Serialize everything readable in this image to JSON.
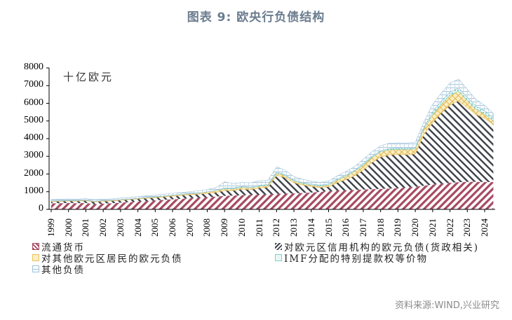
{
  "title": "图表 9:  欧央行负债结构",
  "source": "资料来源:WIND,兴业研究",
  "chart_data": {
    "type": "area",
    "stacked": true,
    "title": "图表 9: 欧央行负债结构",
    "unit_label": "十亿欧元",
    "xlabel": "",
    "ylabel": "十亿欧元",
    "ylim": [
      0,
      8000
    ],
    "yticks": [
      0,
      1000,
      2000,
      3000,
      4000,
      5000,
      6000,
      7000,
      8000
    ],
    "xticks": [
      "1999",
      "2000",
      "2001",
      "2002",
      "2003",
      "2004",
      "2005",
      "2006",
      "2007",
      "2008",
      "2009",
      "2010",
      "2011",
      "2012",
      "2013",
      "2014",
      "2015",
      "2016",
      "2017",
      "2018",
      "2019",
      "2020",
      "2021",
      "2022",
      "2023",
      "2024"
    ],
    "grid": false,
    "legend_position": "bottom",
    "x": [
      1999.0,
      1999.5,
      2000.0,
      2000.5,
      2001.0,
      2001.5,
      2002.0,
      2002.5,
      2003.0,
      2003.5,
      2004.0,
      2004.5,
      2005.0,
      2005.5,
      2006.0,
      2006.5,
      2007.0,
      2007.5,
      2008.0,
      2008.5,
      2009.0,
      2009.5,
      2010.0,
      2010.5,
      2011.0,
      2011.5,
      2012.0,
      2012.5,
      2013.0,
      2013.5,
      2014.0,
      2014.5,
      2015.0,
      2015.5,
      2016.0,
      2016.5,
      2017.0,
      2017.5,
      2018.0,
      2018.5,
      2019.0,
      2019.5,
      2020.0,
      2020.5,
      2021.0,
      2021.5,
      2022.0,
      2022.5,
      2023.0,
      2023.5,
      2024.0,
      2024.5
    ],
    "series": [
      {
        "name": "流通货币",
        "style": "diagonal-red",
        "values": [
          340,
          350,
          360,
          350,
          370,
          280,
          330,
          350,
          380,
          410,
          440,
          470,
          500,
          540,
          570,
          600,
          630,
          660,
          690,
          720,
          760,
          780,
          800,
          810,
          830,
          850,
          880,
          890,
          900,
          930,
          950,
          990,
          1030,
          1060,
          1080,
          1100,
          1120,
          1140,
          1160,
          1180,
          1200,
          1240,
          1280,
          1340,
          1400,
          1450,
          1500,
          1540,
          1560,
          1560,
          1550,
          1550
        ]
      },
      {
        "name": "对欧元区信用机构的欧元负债(货政相关)",
        "style": "diagonal-dark",
        "values": [
          100,
          100,
          110,
          110,
          120,
          140,
          130,
          130,
          140,
          140,
          150,
          160,
          160,
          170,
          180,
          190,
          200,
          200,
          220,
          240,
          300,
          280,
          350,
          300,
          380,
          400,
          1050,
          900,
          600,
          450,
          350,
          250,
          250,
          450,
          600,
          800,
          1100,
          1500,
          1800,
          1900,
          1900,
          1850,
          1850,
          2900,
          3500,
          4000,
          4400,
          4600,
          4200,
          3800,
          3600,
          3250
        ]
      },
      {
        "name": "对其他欧元区居民的欧元负债",
        "style": "crosshatch-yellow",
        "values": [
          30,
          30,
          30,
          30,
          30,
          30,
          30,
          30,
          30,
          30,
          30,
          40,
          40,
          40,
          50,
          50,
          60,
          60,
          80,
          100,
          100,
          100,
          100,
          100,
          100,
          100,
          130,
          120,
          100,
          90,
          80,
          80,
          100,
          150,
          200,
          250,
          300,
          300,
          300,
          300,
          300,
          300,
          300,
          350,
          450,
          500,
          550,
          550,
          400,
          300,
          250,
          200
        ]
      },
      {
        "name": "IMF分配的特别提款权等价物",
        "style": "dotted-teal",
        "values": [
          10,
          10,
          10,
          10,
          10,
          10,
          10,
          10,
          10,
          10,
          10,
          10,
          10,
          10,
          10,
          10,
          10,
          10,
          10,
          10,
          50,
          50,
          50,
          50,
          55,
          55,
          55,
          55,
          55,
          55,
          55,
          55,
          60,
          60,
          60,
          60,
          60,
          60,
          60,
          60,
          60,
          60,
          60,
          60,
          170,
          170,
          180,
          180,
          180,
          180,
          180,
          180
        ]
      },
      {
        "name": "其他负债",
        "style": "grid-lightblue",
        "values": [
          80,
          80,
          80,
          80,
          80,
          90,
          80,
          80,
          80,
          80,
          90,
          90,
          90,
          100,
          100,
          100,
          110,
          120,
          120,
          150,
          350,
          250,
          220,
          240,
          250,
          230,
          300,
          250,
          200,
          180,
          160,
          150,
          160,
          180,
          200,
          220,
          250,
          260,
          280,
          300,
          300,
          300,
          300,
          300,
          420,
          460,
          520,
          500,
          450,
          380,
          300,
          250
        ]
      }
    ]
  },
  "legend": [
    {
      "label": "流通货币",
      "swatch": "diag-red"
    },
    {
      "label": "对欧元区信用机构的欧元负债(货政相关)",
      "swatch": "diag-dark"
    },
    {
      "label": "对其他欧元区居民的欧元负债",
      "swatch": "cross-yellow"
    },
    {
      "label": "IMF分配的特别提款权等价物",
      "swatch": "teal"
    },
    {
      "label": "其他负债",
      "swatch": "lightblue"
    }
  ],
  "colors": {
    "currency": "#a64a62",
    "credit": "#3b4048",
    "residents": "#e8c25a",
    "imf": "#7fd0c8",
    "other": "#9fc1d9",
    "title": "#6b7c8f",
    "source": "#8a8a8a"
  }
}
